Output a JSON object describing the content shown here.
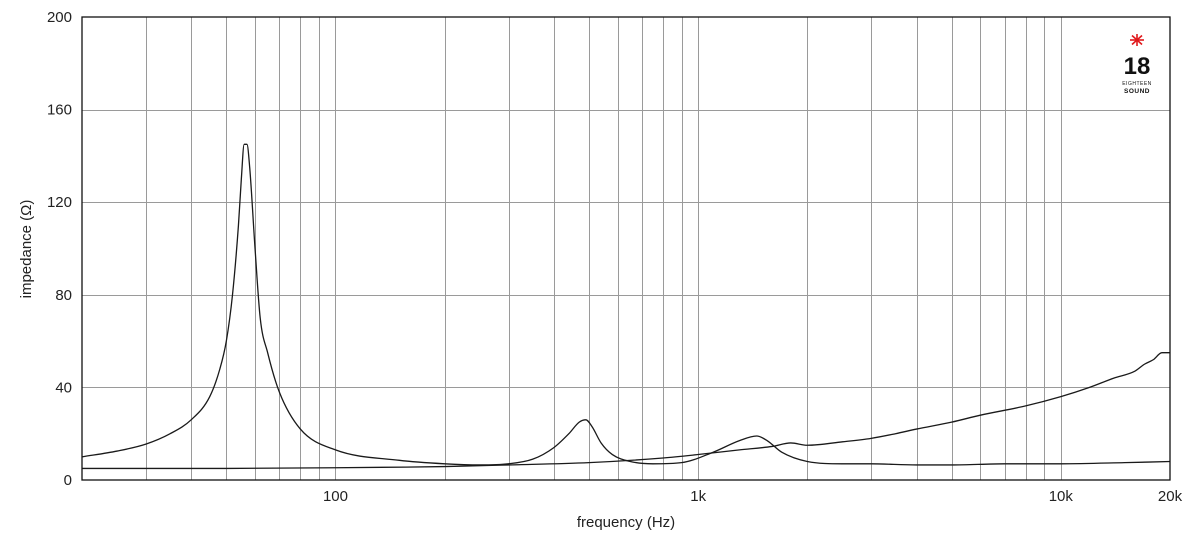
{
  "chart_data": {
    "type": "line",
    "xlabel": "frequency (Hz)",
    "ylabel": "impedance (Ω)",
    "x_scale": "log",
    "xlim": [
      20,
      20000
    ],
    "ylim": [
      0,
      200
    ],
    "grid": true,
    "x_ticks": [
      {
        "value": 100,
        "label": "100"
      },
      {
        "value": 1000,
        "label": "1k"
      },
      {
        "value": 10000,
        "label": "10k"
      },
      {
        "value": 20000,
        "label": "20k"
      }
    ],
    "y_ticks": [
      {
        "value": 0,
        "label": "0"
      },
      {
        "value": 40,
        "label": "40"
      },
      {
        "value": 80,
        "label": "80"
      },
      {
        "value": 120,
        "label": "120"
      },
      {
        "value": 160,
        "label": "160"
      },
      {
        "value": 200,
        "label": "200"
      }
    ],
    "series": [
      {
        "x": [
          20,
          25,
          30,
          35,
          40,
          45,
          48,
          50,
          52,
          54,
          55,
          56,
          57,
          58,
          60,
          62,
          65,
          70,
          80,
          100,
          150,
          200,
          250,
          300,
          350,
          400,
          440,
          470,
          490,
          510,
          540,
          580,
          650,
          750,
          900,
          1100,
          1300,
          1450,
          1550,
          1700,
          2000,
          2500,
          3000,
          4000,
          5000,
          7000,
          10000,
          15000,
          20000
        ],
        "y": [
          10,
          12.5,
          15.5,
          20,
          26,
          36,
          48,
          60,
          80,
          110,
          130,
          145,
          145,
          135,
          100,
          70,
          55,
          38,
          22,
          13,
          8.5,
          7,
          6.5,
          7,
          9,
          14,
          20,
          25,
          26,
          23,
          16,
          11,
          8,
          7,
          7.5,
          12,
          17,
          19,
          17,
          12,
          8,
          7,
          7,
          6.5,
          6.5,
          7,
          7,
          7.5,
          8
        ]
      },
      {
        "x": [
          20,
          50,
          100,
          200,
          300,
          500,
          800,
          1000,
          1300,
          1600,
          1800,
          2000,
          2500,
          3000,
          3500,
          4000,
          5000,
          6000,
          8000,
          10000,
          12000,
          14000,
          16000,
          17000,
          18000,
          19000,
          20000
        ],
        "y": [
          5,
          5,
          5.3,
          5.8,
          6.5,
          7.5,
          9.5,
          11,
          13,
          14.5,
          16,
          15,
          16.5,
          18,
          20,
          22,
          25,
          28,
          32,
          36,
          40,
          44,
          47,
          50,
          52,
          55,
          55
        ]
      }
    ]
  },
  "logo": {
    "number": "18",
    "line1": "EIGHTEEN",
    "line2": "SOUND",
    "star_color": "#e0191c"
  }
}
